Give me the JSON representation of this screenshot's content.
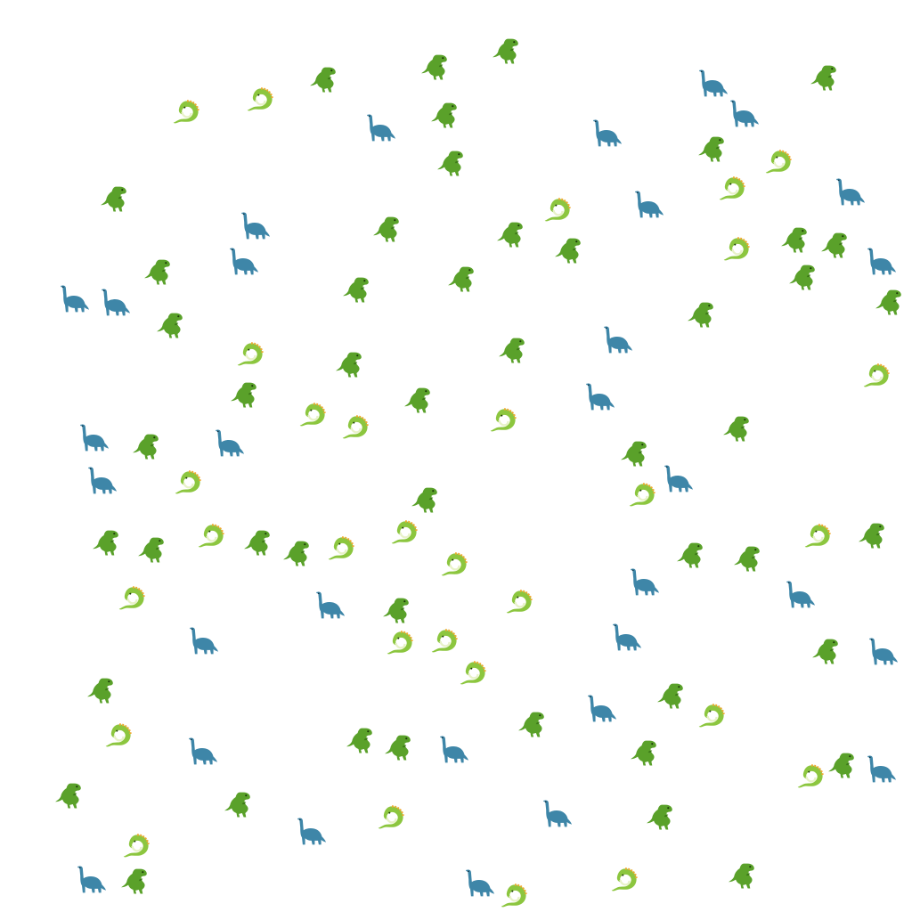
{
  "colors": {
    "background": "#ffffff",
    "trex_body": "#5aa12a",
    "trex_dark": "#3d7a18",
    "sauropod_body": "#3e86a8",
    "sauropod_dark": "#2a6583",
    "dragon_body": "#8cc63f",
    "dragon_dark": "#5f9a24",
    "dragon_belly": "#e8f2c8",
    "dragon_spines": "#f0a830"
  },
  "glyphs": {
    "trex": "trex-icon",
    "sauropod": "sauropod-icon",
    "dragon": "dragon-icon"
  }
}
